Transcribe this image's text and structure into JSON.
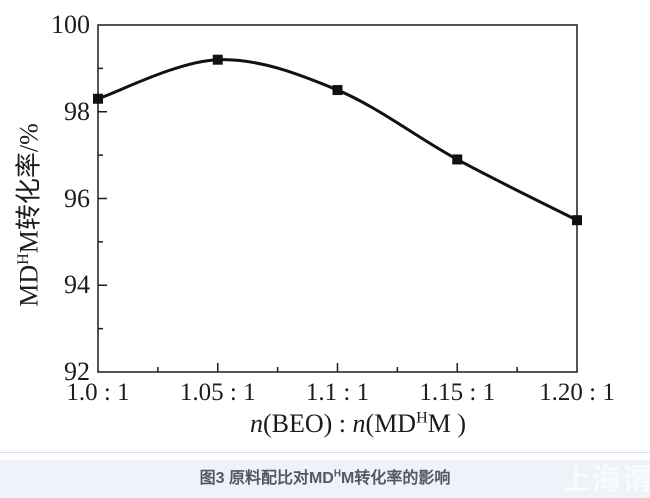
{
  "page": {
    "background": "#ffffff",
    "caption_bar": {
      "background": "#eef2f9",
      "text_color": "#54585f",
      "caption_prefix": "图3 原料配比对MD",
      "caption_sup": "H",
      "caption_suffix": "M转化率的影响",
      "watermark": "上海谓美",
      "watermark_color": "#f8fafd"
    }
  },
  "chart_data": {
    "type": "line",
    "title": "",
    "x": [
      1.0,
      1.05,
      1.1,
      1.15,
      1.2
    ],
    "x_tick_labels": [
      "1.0 : 1",
      "1.05 : 1",
      "1.1 : 1",
      "1.15 : 1",
      "1.20 : 1"
    ],
    "values": [
      98.3,
      99.2,
      98.5,
      96.9,
      95.5
    ],
    "series_name": "MDHM conversion rate",
    "xlim": [
      1.0,
      1.2
    ],
    "ylim": [
      92,
      100
    ],
    "y_major_tick_labels": [
      100,
      98,
      96,
      94,
      92
    ],
    "y_minor_ticks": [
      93,
      95,
      97,
      99
    ],
    "x_minor_ticks": [
      1.025,
      1.075,
      1.125,
      1.175
    ],
    "xlabel": {
      "n1": "n",
      "g1": "(BEO)",
      "colon": " : ",
      "n2": "n",
      "g2": "(MD",
      "sup": "H",
      "g3": "M )"
    },
    "ylabel": {
      "prefix": "MD",
      "sup": "H",
      "suffix": "M转化率/%"
    },
    "grid": false,
    "legend": null,
    "marker": "square",
    "line_color": "#111111",
    "axis_color": "#1c1c1c"
  }
}
